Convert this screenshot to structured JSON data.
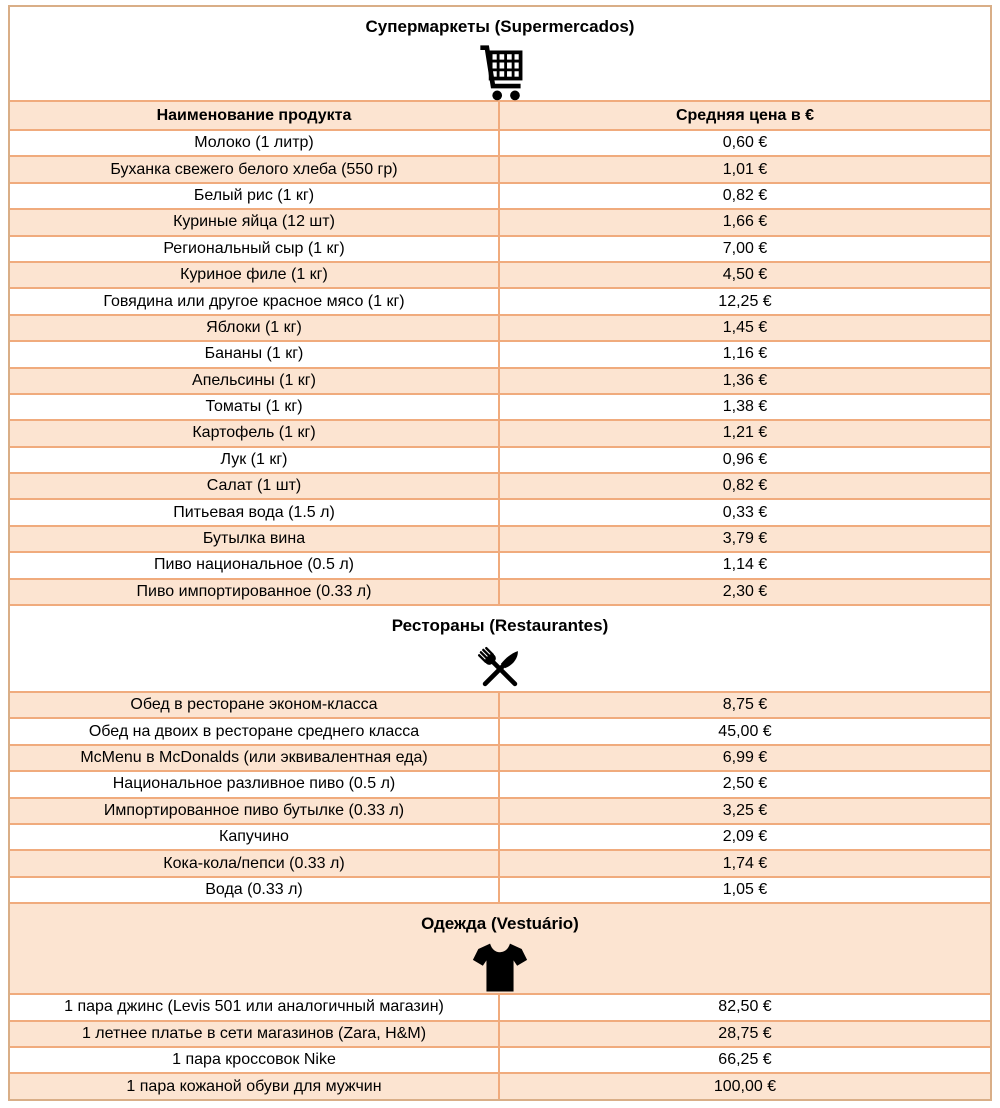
{
  "colors": {
    "stripe_fill": "#fce4d1",
    "grid_border": "#f0ab7d",
    "outer_border": "#d9ae87",
    "icon_color": "#000000",
    "text_color": "#000000"
  },
  "columns": {
    "product": "Наименование продукта",
    "price": "Средняя цена в €"
  },
  "sections": [
    {
      "id": "supermarkets",
      "title": "Супермаркеты (Supermercados)",
      "icon": "shopping-cart-icon",
      "header_shade": "white",
      "first_row_shade": "white",
      "rows": [
        [
          "Молоко (1 литр)",
          "0,60 €"
        ],
        [
          "Буханка свежего белого хлеба (550 гр)",
          "1,01 €"
        ],
        [
          "Белый рис (1 кг)",
          "0,82 €"
        ],
        [
          "Куриные яйца (12 шт)",
          "1,66 €"
        ],
        [
          "Региональный сыр (1 кг)",
          "7,00 €"
        ],
        [
          "Куриное филе (1 кг)",
          "4,50 €"
        ],
        [
          "Говядина или другое красное мясо (1 кг)",
          "12,25 €"
        ],
        [
          "Яблоки (1 кг)",
          "1,45 €"
        ],
        [
          "Бананы (1 кг)",
          "1,16 €"
        ],
        [
          "Апельсины (1 кг)",
          "1,36 €"
        ],
        [
          "Томаты (1 кг)",
          "1,38 €"
        ],
        [
          "Картофель (1 кг)",
          "1,21 €"
        ],
        [
          "Лук (1 кг)",
          "0,96 €"
        ],
        [
          "Салат (1 шт)",
          "0,82 €"
        ],
        [
          "Питьевая вода (1.5 л)",
          "0,33 €"
        ],
        [
          "Бутылка вина",
          "3,79 €"
        ],
        [
          "Пиво национальное (0.5 л)",
          "1,14 €"
        ],
        [
          "Пиво импортированное (0.33 л)",
          "2,30 €"
        ]
      ]
    },
    {
      "id": "restaurants",
      "title": "Рестораны (Restaurantes)",
      "icon": "cutlery-icon",
      "header_shade": "white",
      "first_row_shade": "peach",
      "rows": [
        [
          "Обед в ресторане эконом-класса",
          "8,75 €"
        ],
        [
          "Обед на двоих в ресторане среднего класса",
          "45,00 €"
        ],
        [
          "McMenu в McDonalds (или эквивалентная еда)",
          "6,99 €"
        ],
        [
          "Национальное разливное пиво (0.5 л)",
          "2,50 €"
        ],
        [
          "Импортированное пиво бутылке (0.33 л)",
          "3,25 €"
        ],
        [
          "Капучино",
          "2,09 €"
        ],
        [
          "Кока-кола/пепси (0.33 л)",
          "1,74 €"
        ],
        [
          "Вода (0.33 л)",
          "1,05 €"
        ]
      ]
    },
    {
      "id": "clothing",
      "title": "Одежда (Vestuário)",
      "icon": "tshirt-icon",
      "header_shade": "peach",
      "first_row_shade": "white",
      "rows": [
        [
          "1 пара джинс (Levis 501 или аналогичный магазин)",
          "82,50 €"
        ],
        [
          "1 летнее платье в сети магазинов (Zara, H&M)",
          "28,75 €"
        ],
        [
          "1 пара кроссовок Nike",
          "66,25 €"
        ],
        [
          "1 пара кожаной обуви для мужчин",
          "100,00 €"
        ]
      ]
    }
  ]
}
